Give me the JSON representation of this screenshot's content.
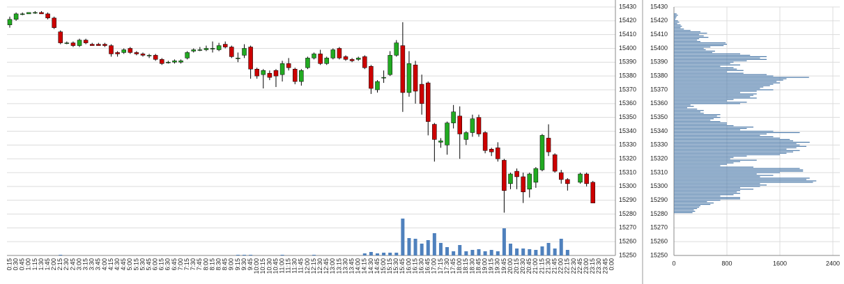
{
  "chart_data": [
    {
      "type": "candlestick",
      "categories": [
        "0:15",
        "0:30",
        "0:45",
        "1:00",
        "1:15",
        "1:30",
        "1:45",
        "2:00",
        "2:15",
        "2:30",
        "2:45",
        "3:00",
        "3:15",
        "3:30",
        "3:45",
        "4:00",
        "4:15",
        "4:30",
        "4:45",
        "5:00",
        "5:15",
        "5:30",
        "5:45",
        "6:00",
        "6:15",
        "6:30",
        "6:45",
        "7:00",
        "7:15",
        "7:30",
        "7:45",
        "8:00",
        "8:15",
        "8:30",
        "8:45",
        "9:00",
        "9:15",
        "9:30",
        "9:45",
        "10:00",
        "10:15",
        "10:30",
        "10:45",
        "11:00",
        "11:15",
        "11:30",
        "11:45",
        "12:00",
        "12:15",
        "12:30",
        "12:45",
        "13:00",
        "13:15",
        "13:30",
        "13:45",
        "14:00",
        "14:15",
        "14:30",
        "14:45",
        "15:00",
        "15:15",
        "15:30",
        "15:45",
        "16:00",
        "16:15",
        "16:30",
        "16:45",
        "17:00",
        "17:15",
        "17:30",
        "17:45",
        "18:00",
        "18:15",
        "18:30",
        "18:45",
        "19:00",
        "19:15",
        "19:30",
        "19:45",
        "20:00",
        "20:15",
        "20:30",
        "20:45",
        "21:00",
        "21:15",
        "21:30",
        "21:45",
        "22:00",
        "22:15",
        "22:30",
        "22:45",
        "23:00",
        "23:15",
        "23:30",
        "23:45",
        "0:00"
      ],
      "open": [
        15417,
        15421,
        15425,
        15425,
        15426,
        15426,
        15425,
        15422,
        15412,
        15404,
        15404,
        15402,
        15406,
        15403,
        15403,
        15403,
        15402,
        15397,
        15397,
        15400,
        15397,
        15396,
        15395,
        15395,
        15392,
        15390,
        15390,
        15390,
        15393,
        15398,
        15399,
        15399,
        15400,
        15399,
        15403,
        15401,
        15393,
        15395,
        15401,
        15385,
        15381,
        15382,
        15384,
        15381,
        15389,
        15385,
        15376,
        15386,
        15393,
        15396,
        15389,
        15393,
        15400,
        15394,
        15392,
        15392,
        15394,
        15387,
        15370,
        15379,
        15381,
        15395,
        15402,
        15368,
        15388,
        15374,
        15375,
        15345,
        15332,
        15330,
        15346,
        15351,
        15334,
        15339,
        15350,
        15339,
        15327,
        15328,
        15319,
        15302,
        15311,
        15307,
        15298,
        15303,
        15312,
        15335,
        15323,
        15310,
        15305,
        null,
        15303,
        15309,
        15303,
        null,
        null,
        null
      ],
      "high": [
        15423,
        15426,
        15426,
        15426,
        15427,
        15427,
        15426,
        15423,
        15413,
        15405,
        15405,
        15407,
        15407,
        15404,
        15404,
        15404,
        15403,
        15398,
        15400,
        15401,
        15398,
        15397,
        15396,
        15396,
        15393,
        15391,
        15392,
        15392,
        15398,
        15400,
        15401,
        15402,
        15405,
        15404,
        15405,
        15402,
        15397,
        15403,
        15402,
        15386,
        15385,
        15384,
        15385,
        15391,
        15393,
        15386,
        15385,
        15394,
        15397,
        15399,
        15394,
        15400,
        15401,
        15395,
        15393,
        15394,
        15395,
        15388,
        15377,
        15384,
        15398,
        15406,
        15419,
        15398,
        15391,
        15381,
        15376,
        15346,
        15335,
        15347,
        15359,
        15358,
        15340,
        15352,
        15352,
        15340,
        15328,
        15332,
        15320,
        15310,
        15313,
        15310,
        15310,
        15314,
        15338,
        15345,
        15324,
        15312,
        15306,
        null,
        15310,
        15310,
        15304,
        null,
        null,
        null
      ],
      "low": [
        15415,
        15420,
        15424,
        15425,
        15425,
        15425,
        15421,
        15414,
        15403,
        15403,
        15401,
        15401,
        15403,
        15402,
        15402,
        15401,
        15394,
        15394,
        15396,
        15396,
        15395,
        15394,
        15393,
        15391,
        15388,
        15389,
        15389,
        15389,
        15392,
        15397,
        15398,
        15398,
        15397,
        15398,
        15400,
        15393,
        15390,
        15393,
        15378,
        15378,
        15371,
        15377,
        15372,
        15376,
        15384,
        15374,
        15373,
        15385,
        15392,
        15388,
        15388,
        15392,
        15392,
        15391,
        15390,
        15391,
        15385,
        15367,
        15368,
        15375,
        15380,
        15394,
        15354,
        15365,
        15360,
        15352,
        15337,
        15318,
        15328,
        15323,
        15342,
        15320,
        15330,
        15336,
        15336,
        15324,
        15322,
        15318,
        15281,
        15298,
        15298,
        15288,
        15292,
        15299,
        15311,
        15322,
        15310,
        15302,
        15297,
        null,
        15302,
        15300,
        15288,
        null,
        null,
        null
      ],
      "close": [
        15421,
        15425,
        15425,
        15426,
        15426,
        15425,
        15422,
        15415,
        15404,
        15404,
        15402,
        15406,
        15404,
        15402,
        15402,
        15402,
        15396,
        15396,
        15399,
        15397,
        15396,
        15395,
        15395,
        15392,
        15389,
        15390,
        15391,
        15391,
        15397,
        15399,
        15399,
        15400,
        15400,
        15402,
        15401,
        15394,
        15393,
        15400,
        15385,
        15380,
        15384,
        15379,
        15380,
        15389,
        15386,
        15376,
        15384,
        15393,
        15396,
        15389,
        15393,
        15399,
        15393,
        15392,
        15391,
        15393,
        15386,
        15371,
        15376,
        15379,
        15395,
        15404,
        15368,
        15389,
        15369,
        15360,
        15347,
        15334,
        15333,
        15346,
        15354,
        15338,
        15339,
        15349,
        15338,
        15326,
        15325,
        15320,
        15297,
        15309,
        15307,
        15296,
        15309,
        15313,
        15337,
        15325,
        15311,
        15305,
        15302,
        null,
        15309,
        15302,
        15288,
        null,
        null,
        null
      ],
      "volume": [
        0,
        0,
        0,
        0,
        0,
        0,
        0,
        0,
        1,
        0,
        0,
        0,
        0,
        0,
        0,
        0,
        0,
        0,
        0,
        0,
        0,
        0,
        0,
        0,
        0,
        0,
        0,
        0,
        0,
        0,
        0,
        0,
        0,
        0,
        0,
        0,
        1,
        1,
        1,
        0,
        0,
        0,
        0,
        1,
        0,
        0,
        0,
        0,
        1,
        0,
        0,
        0,
        0,
        0,
        0,
        0,
        3,
        5,
        3,
        4,
        4,
        4,
        53,
        25,
        24,
        17,
        22,
        32,
        18,
        12,
        6,
        15,
        6,
        8,
        9,
        6,
        8,
        6,
        39,
        17,
        10,
        10,
        9,
        8,
        13,
        18,
        10,
        24,
        8,
        null,
        0,
        0,
        0,
        null,
        null,
        null
      ],
      "up_color": "#22aa22",
      "down_color": "#cc0000",
      "volume_color": "#4f81bd",
      "ylim": [
        15250,
        15430
      ],
      "yticks": [
        15250,
        15260,
        15270,
        15280,
        15290,
        15300,
        15310,
        15320,
        15330,
        15340,
        15350,
        15360,
        15370,
        15380,
        15390,
        15400,
        15410,
        15420,
        15430
      ],
      "grid": true
    },
    {
      "type": "barh",
      "levels": [
        15281,
        15282,
        15283,
        15284,
        15285,
        15286,
        15287,
        15288,
        15289,
        15290,
        15291,
        15292,
        15293,
        15294,
        15295,
        15296,
        15297,
        15298,
        15299,
        15300,
        15301,
        15302,
        15303,
        15304,
        15305,
        15306,
        15307,
        15308,
        15309,
        15310,
        15311,
        15312,
        15313,
        15314,
        15315,
        15316,
        15317,
        15318,
        15319,
        15320,
        15321,
        15322,
        15323,
        15324,
        15325,
        15326,
        15327,
        15328,
        15329,
        15330,
        15331,
        15332,
        15333,
        15334,
        15335,
        15336,
        15337,
        15338,
        15339,
        15340,
        15341,
        15342,
        15343,
        15344,
        15345,
        15346,
        15347,
        15348,
        15349,
        15350,
        15351,
        15352,
        15353,
        15354,
        15355,
        15356,
        15357,
        15358,
        15359,
        15360,
        15361,
        15362,
        15363,
        15364,
        15365,
        15366,
        15367,
        15368,
        15369,
        15370,
        15371,
        15372,
        15373,
        15374,
        15375,
        15376,
        15377,
        15378,
        15379,
        15380,
        15381,
        15382,
        15383,
        15384,
        15385,
        15386,
        15387,
        15388,
        15389,
        15390,
        15391,
        15392,
        15393,
        15394,
        15395,
        15396,
        15397,
        15398,
        15399,
        15400,
        15401,
        15402,
        15403,
        15404,
        15405,
        15406,
        15407,
        15408,
        15409,
        15410,
        15411,
        15412,
        15413,
        15414,
        15415,
        15416,
        15417,
        15418,
        15419,
        15420,
        15421,
        15422,
        15423,
        15424,
        15425
      ],
      "values": [
        280,
        320,
        300,
        350,
        380,
        400,
        550,
        600,
        500,
        700,
        1000,
        1000,
        700,
        900,
        1000,
        950,
        1000,
        1200,
        1000,
        1300,
        1400,
        1300,
        2100,
        2150,
        2000,
        2050,
        1300,
        1500,
        1250,
        1600,
        1950,
        1950,
        1900,
        1200,
        700,
        800,
        900,
        1000,
        1250,
        850,
        900,
        1100,
        1600,
        1700,
        1800,
        1900,
        1700,
        1850,
        2000,
        1900,
        1850,
        2050,
        1800,
        1750,
        1600,
        1500,
        1300,
        1400,
        1900,
        1500,
        1000,
        1100,
        1200,
        900,
        800,
        800,
        700,
        550,
        600,
        700,
        650,
        700,
        450,
        400,
        450,
        350,
        200,
        300,
        250,
        1000,
        1100,
        800,
        900,
        1250,
        1150,
        1200,
        1250,
        1000,
        1250,
        1500,
        1300,
        1350,
        1450,
        1500,
        1600,
        1550,
        1650,
        1700,
        2040,
        1500,
        1400,
        1050,
        800,
        1050,
        950,
        900,
        700,
        1000,
        850,
        900,
        1100,
        1400,
        1300,
        1400,
        1150,
        1000,
        580,
        620,
        480,
        450,
        550,
        750,
        800,
        780,
        400,
        350,
        380,
        520,
        450,
        380,
        500,
        400,
        250,
        150,
        100,
        120,
        100,
        50,
        80,
        60,
        20,
        30,
        40,
        60,
        40
      ],
      "color": "#4a78a8",
      "xlim": [
        0,
        2400
      ],
      "xticks": [
        0,
        800,
        1600,
        2400
      ],
      "ylim": [
        15250,
        15430
      ],
      "yticks": [
        15250,
        15260,
        15270,
        15280,
        15290,
        15300,
        15310,
        15320,
        15330,
        15340,
        15350,
        15360,
        15370,
        15380,
        15390,
        15400,
        15410,
        15420,
        15430
      ],
      "grid": true
    }
  ]
}
